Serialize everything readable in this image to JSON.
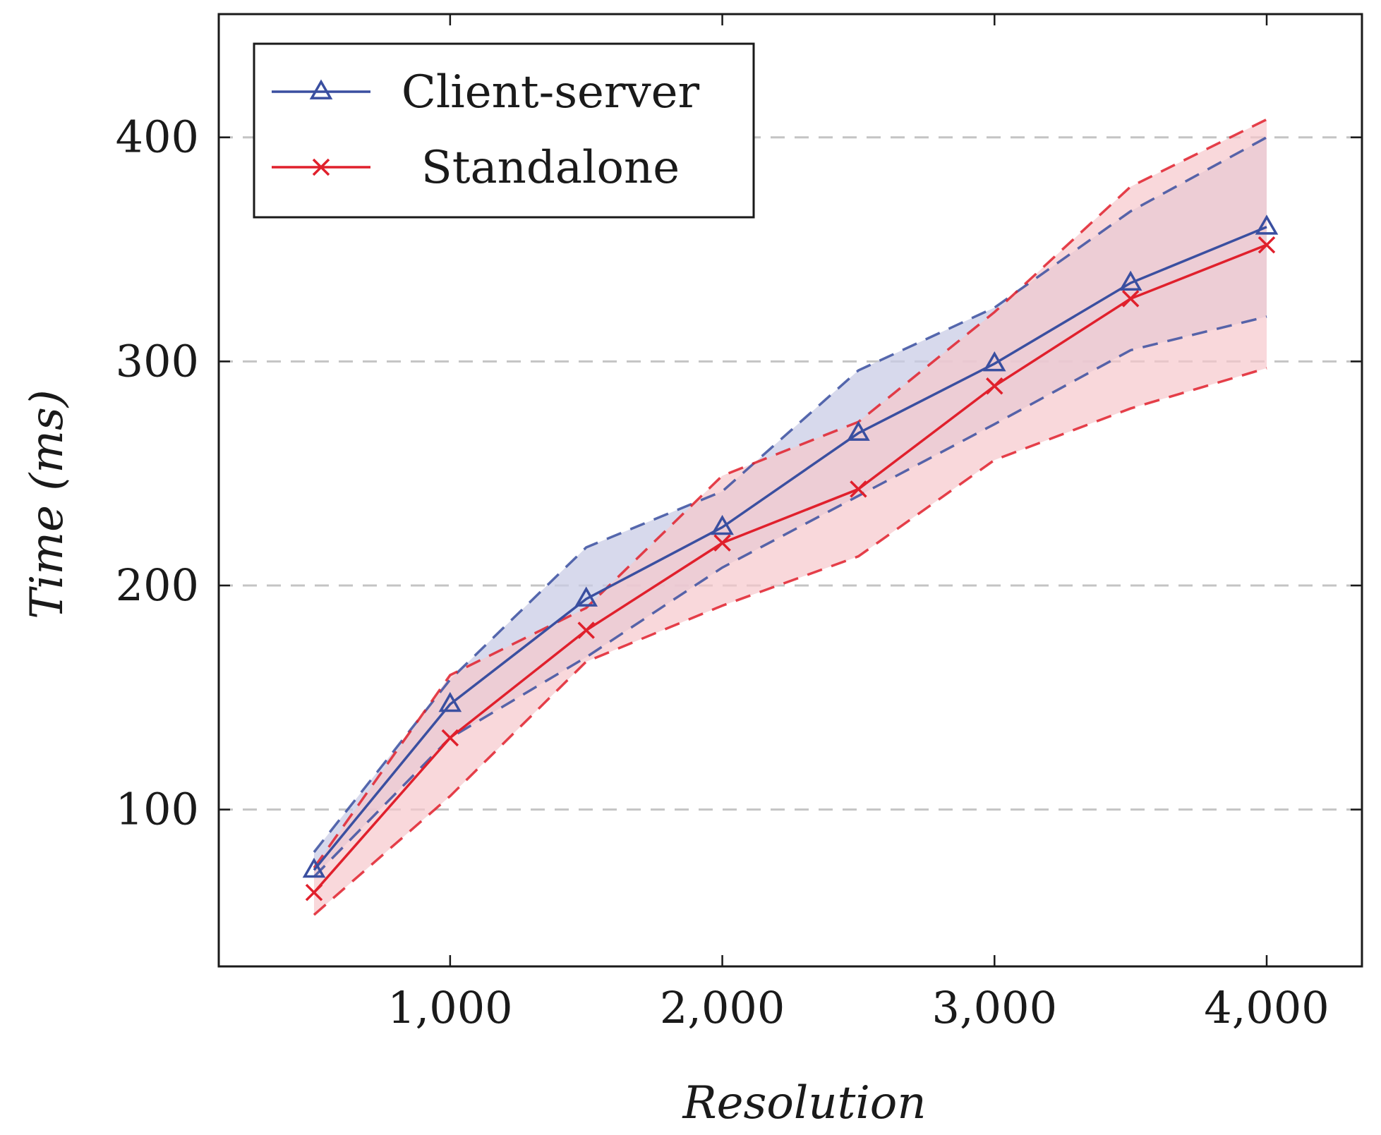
{
  "chart_data": {
    "type": "line",
    "title": "",
    "xlabel": "Resolution",
    "ylabel": "Time (ms)",
    "xlim": [
      150,
      4350
    ],
    "ylim": [
      30,
      455
    ],
    "x_ticks": [
      1000,
      2000,
      3000,
      4000
    ],
    "x_tick_labels": [
      "1,000",
      "2,000",
      "3,000",
      "4,000"
    ],
    "y_ticks": [
      100,
      200,
      300,
      400
    ],
    "y_tick_labels": [
      "100",
      "200",
      "300",
      "400"
    ],
    "grid": "horizontal dashed",
    "legend_position": "top-left",
    "x": [
      500,
      1000,
      1500,
      2000,
      2500,
      3000,
      3500,
      4000
    ],
    "series": [
      {
        "name": "Client-server",
        "color": "#3a4fa0",
        "fill": "#c9cce6",
        "marker": "triangle",
        "values": [
          73,
          147,
          194,
          226,
          268,
          299,
          335,
          360
        ],
        "upper": [
          81,
          158,
          217,
          242,
          296,
          324,
          367,
          400
        ],
        "lower": [
          70,
          132,
          168,
          208,
          240,
          272,
          305,
          320
        ]
      },
      {
        "name": "Standalone",
        "color": "#e0202c",
        "fill": "#f7c7cc",
        "marker": "x",
        "values": [
          63,
          132,
          180,
          219,
          243,
          289,
          328,
          352
        ],
        "upper": [
          74,
          160,
          190,
          249,
          273,
          322,
          378,
          408
        ],
        "lower": [
          53,
          106,
          166,
          191,
          213,
          256,
          279,
          297
        ]
      }
    ]
  }
}
